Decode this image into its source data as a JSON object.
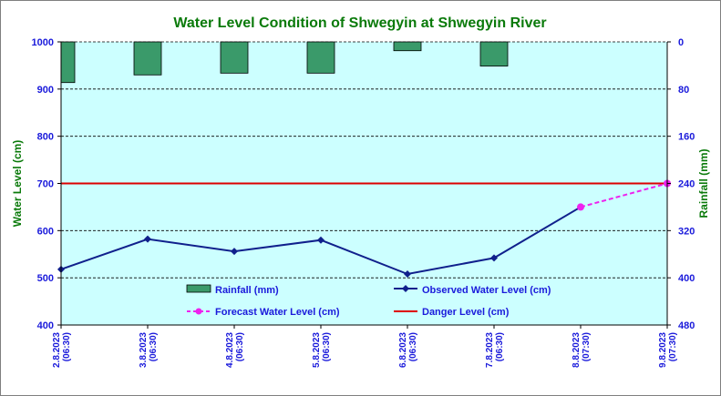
{
  "chart_data": {
    "type": "bar-line-combo",
    "title": "Water Level Condition of  Shwegyin at Shwegyin River",
    "ylabel_left": "Water Level (cm)",
    "ylabel_right": "Rainfall (mm)",
    "ylim_left": [
      400,
      1000
    ],
    "yticks_left": [
      "400",
      "500",
      "600",
      "700",
      "800",
      "900",
      "1000"
    ],
    "ylim_right_inverted": [
      0,
      480
    ],
    "yticks_right": [
      "0",
      "80",
      "160",
      "240",
      "320",
      "400",
      "480"
    ],
    "grid": "horizontal dashed at left-axis ticks",
    "categories": [
      [
        "2.8.2023",
        "(06:30)"
      ],
      [
        "3.8.2023",
        "(06:30)"
      ],
      [
        "4.8.2023",
        "(06:30)"
      ],
      [
        "5.8.2023",
        "(06:30)"
      ],
      [
        "6.8.2023",
        "(06:30)"
      ],
      [
        "7.8.2023",
        "(06:30)"
      ],
      [
        "8.8.2023",
        "(07:30)"
      ],
      [
        "9.8.2023",
        "(07:30)"
      ]
    ],
    "rainfall": {
      "name": "Rainfall (mm)",
      "values": [
        69,
        56,
        53,
        53,
        15,
        41,
        null,
        null
      ],
      "color": "#3a9a6a"
    },
    "observed": {
      "name": "Observed Water Level (cm)",
      "values": [
        518,
        582,
        556,
        580,
        508,
        542,
        null,
        null
      ],
      "color": "#10208c"
    },
    "forecast": {
      "name": "Forecast Water Level (cm)",
      "values": [
        null,
        null,
        null,
        null,
        null,
        null,
        650,
        700
      ],
      "color": "#ee22ee"
    },
    "danger": {
      "name": "Danger Level (cm)",
      "value": 700,
      "color": "#dd0000"
    },
    "legend_placement": "inside lower-middle of plot area"
  }
}
